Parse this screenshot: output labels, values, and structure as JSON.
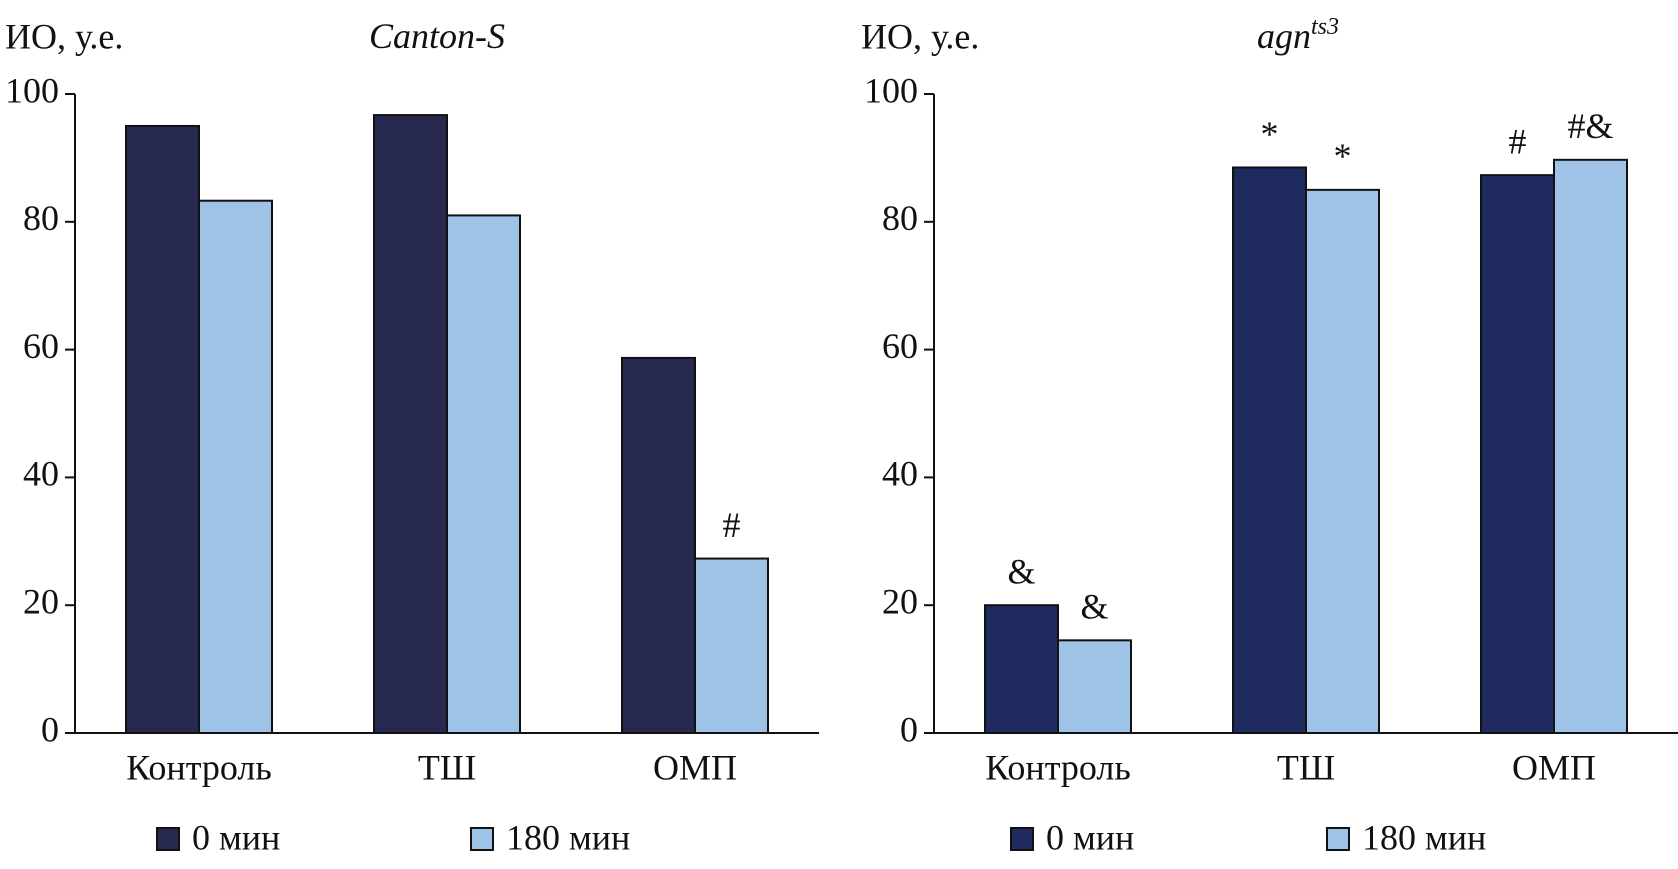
{
  "chart_data": [
    {
      "type": "bar",
      "title": "Canton-S",
      "y_label": "ИО, у.е.",
      "categories": [
        "Контроль",
        "ТШ",
        "ОМП"
      ],
      "series": [
        {
          "name": "0 мин",
          "color": "#262850",
          "values": [
            95,
            96.7,
            58.7
          ],
          "annotations": [
            null,
            null,
            null
          ]
        },
        {
          "name": "180 мин",
          "color": "#9fc3e6",
          "values": [
            83.3,
            81,
            27.3
          ],
          "annotations": [
            null,
            null,
            "#"
          ]
        }
      ],
      "ylim": [
        0,
        100
      ],
      "yticks": [
        0,
        20,
        40,
        60,
        80,
        100
      ]
    },
    {
      "type": "bar",
      "title": "agn",
      "title_sup": "ts3",
      "y_label": "ИО, у.е.",
      "categories": [
        "Контроль",
        "ТШ",
        "ОМП"
      ],
      "series": [
        {
          "name": "0 мин",
          "color": "#1f2a5e",
          "values": [
            20,
            88.5,
            87.3
          ],
          "annotations": [
            "&",
            "*",
            "#"
          ]
        },
        {
          "name": "180 мин",
          "color": "#9fc3e6",
          "values": [
            14.5,
            85,
            89.7
          ],
          "annotations": [
            "&",
            "*",
            "#&"
          ]
        }
      ],
      "ylim": [
        0,
        100
      ],
      "yticks": [
        0,
        20,
        40,
        60,
        80,
        100
      ]
    }
  ]
}
